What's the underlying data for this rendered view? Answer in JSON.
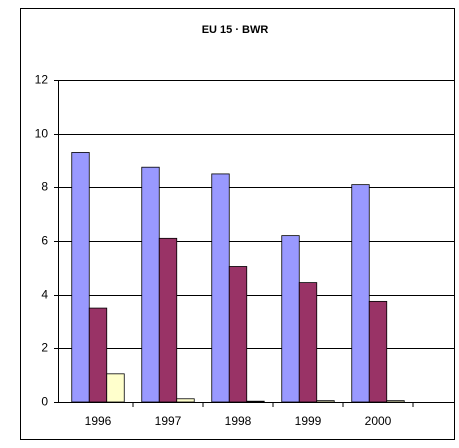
{
  "chart_data": {
    "type": "bar",
    "title": "EU 15  ·  BWR",
    "categories": [
      "1996",
      "1997",
      "1998",
      "1999",
      "2000"
    ],
    "series": [
      {
        "color": "#9999ff",
        "values": [
          9.3,
          8.75,
          8.5,
          6.2,
          8.1
        ]
      },
      {
        "color": "#993366",
        "values": [
          3.5,
          6.1,
          5.05,
          4.45,
          3.75
        ]
      },
      {
        "color": "#ffffcc",
        "values": [
          1.05,
          0.12,
          0.03,
          0.05,
          0.05
        ]
      }
    ],
    "ylim": [
      0,
      12
    ],
    "yticks": [
      0,
      2,
      4,
      6,
      8,
      10,
      12
    ],
    "grid": true
  }
}
